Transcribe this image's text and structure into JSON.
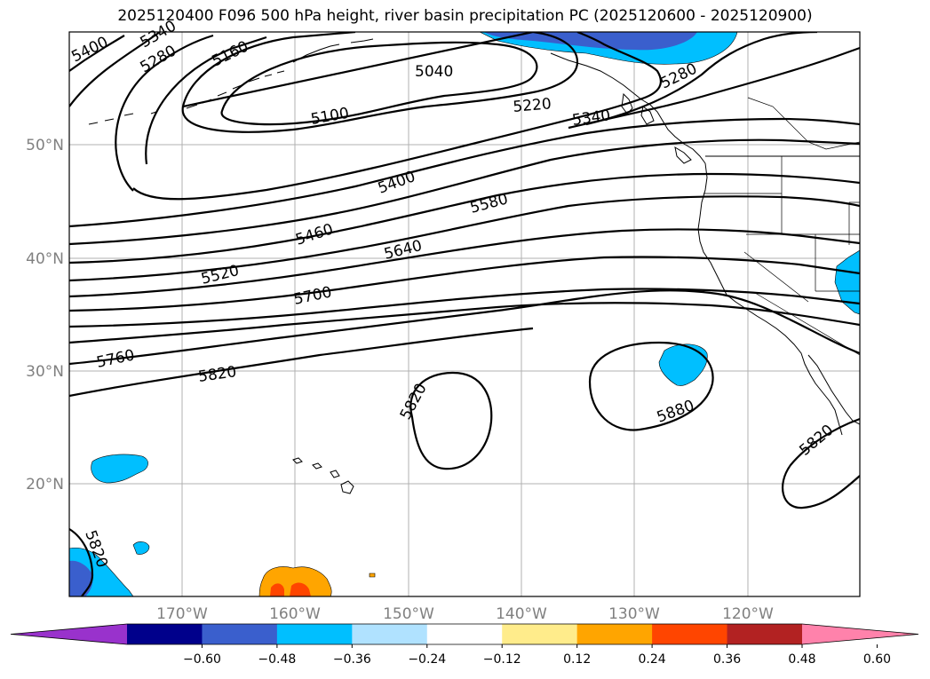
{
  "title": "2025120400 F096 500 hPa height, river basin precipitation PC (2025120600 - 2025120900)",
  "chart_data": {
    "type": "contour map",
    "variable": "500 hPa height",
    "shading": "river basin precipitation PC",
    "lon_labels": [
      "170°W",
      "160°W",
      "150°W",
      "140°W",
      "130°W",
      "120°W"
    ],
    "lat_labels": [
      "50°N",
      "40°N",
      "30°N",
      "20°N"
    ],
    "contour_labels": [
      "5400",
      "5340",
      "5280",
      "5160",
      "5040",
      "5100",
      "5220",
      "5340",
      "5280",
      "5400",
      "5580",
      "5460",
      "5640",
      "5520",
      "5700",
      "5760",
      "5820",
      "5820",
      "5880",
      "5820",
      "5820"
    ],
    "colorbar": {
      "ticks": [
        "−0.60",
        "−0.48",
        "−0.36",
        "−0.24",
        "−0.12",
        "0.12",
        "0.24",
        "0.36",
        "0.48",
        "0.60"
      ],
      "colors": [
        "#9932CC",
        "#00008B",
        "#3A5FCD",
        "#00BFFF",
        "#B0E2FF",
        "#FFFFFF",
        "#FFEC8B",
        "#FFA500",
        "#FF4500",
        "#B22222",
        "#FF82AB"
      ],
      "extend": "both"
    }
  }
}
